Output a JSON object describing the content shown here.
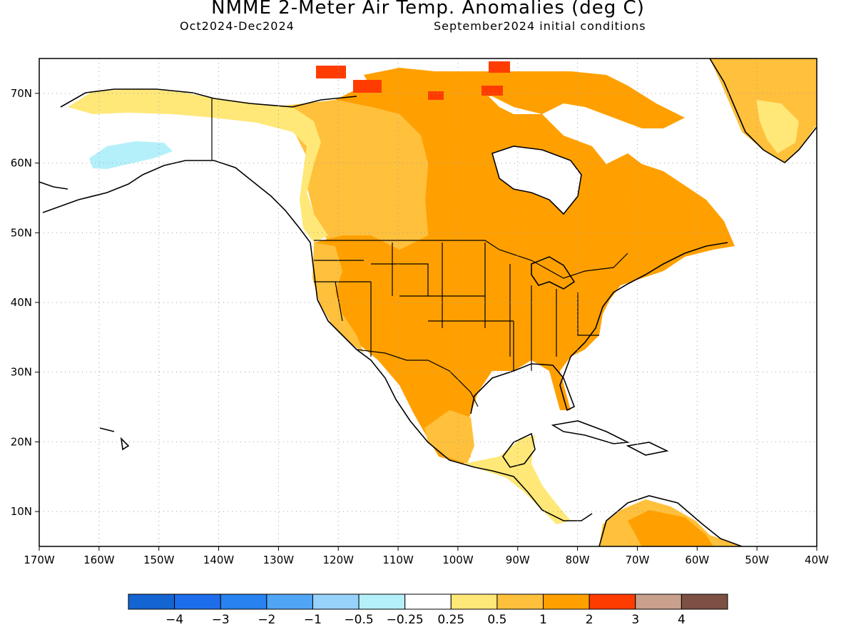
{
  "header": {
    "title": "NMME 2-Meter Air Temp. Anomalies (deg C)",
    "period": "Oct2024-Dec2024",
    "init": "September2024 initial conditions"
  },
  "axes": {
    "lon_labels": [
      "170W",
      "160W",
      "150W",
      "140W",
      "130W",
      "120W",
      "110W",
      "100W",
      "90W",
      "80W",
      "70W",
      "60W",
      "50W",
      "40W"
    ],
    "lon_values": [
      -170,
      -160,
      -150,
      -140,
      -130,
      -120,
      -110,
      -100,
      -90,
      -80,
      -70,
      -60,
      -50,
      -40
    ],
    "lat_labels": [
      "10N",
      "20N",
      "30N",
      "40N",
      "50N",
      "60N",
      "70N"
    ],
    "lat_values": [
      10,
      20,
      30,
      40,
      50,
      60,
      70
    ],
    "lon_range": [
      -170,
      -40
    ],
    "lat_range": [
      5,
      75
    ],
    "grid": "dotted"
  },
  "colorbar": {
    "colors": [
      "#1464d2",
      "#1e6eeb",
      "#2882f0",
      "#50a5f5",
      "#96d2fa",
      "#b4f0fa",
      "#ffffff",
      "#ffe878",
      "#ffc03c",
      "#ffa000",
      "#ff3c00",
      "#c8a08c",
      "#7d5044"
    ],
    "labels": [
      "-4",
      "-3",
      "-2",
      "-1",
      "-0.5",
      "-0.25",
      "0.25",
      "0.5",
      "1",
      "2",
      "3",
      "4"
    ]
  },
  "regions": [
    {
      "name": "alaska-north-slope",
      "level": "0.5",
      "color": "#ffe878"
    },
    {
      "name": "southwest-alaska",
      "level": "-0.25",
      "color": "#b4f0fa"
    },
    {
      "name": "western-canada",
      "level": "1",
      "color": "#ffc03c"
    },
    {
      "name": "canada-east",
      "level": "2",
      "color": "#ffa000"
    },
    {
      "name": "united-states",
      "level": "2",
      "color": "#ffa000"
    },
    {
      "name": "mexico",
      "level": "2",
      "color": "#ffa000"
    },
    {
      "name": "central-america",
      "level": "0.5",
      "color": "#ffe878"
    },
    {
      "name": "south-america-north",
      "level": "1",
      "color": "#ffc03c"
    },
    {
      "name": "greenland",
      "level": "1",
      "color": "#ffc03c"
    },
    {
      "name": "arctic-islands",
      "level": "3",
      "color": "#ff3c00"
    }
  ]
}
